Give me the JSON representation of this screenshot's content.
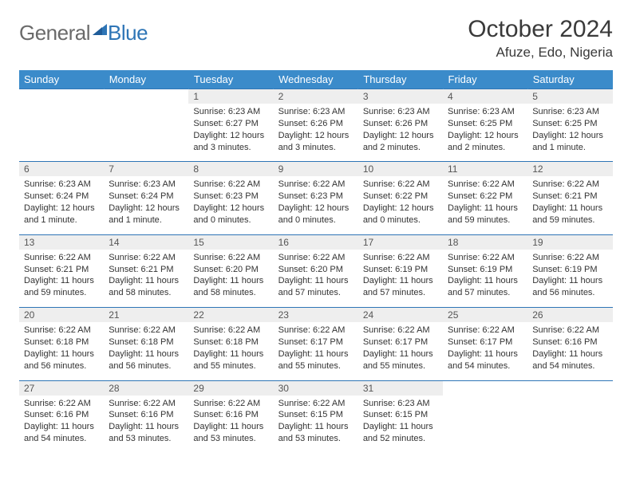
{
  "brand": {
    "part1": "General",
    "part2": "Blue"
  },
  "title": "October 2024",
  "location": "Afuze, Edo, Nigeria",
  "colors": {
    "header_bg": "#3b8bca",
    "header_text": "#ffffff",
    "rule": "#2e75b6",
    "daynum_bg": "#eeeeee",
    "text": "#333333",
    "logo_gray": "#6a6a6a",
    "logo_blue": "#2e75b6"
  },
  "weekdays": [
    "Sunday",
    "Monday",
    "Tuesday",
    "Wednesday",
    "Thursday",
    "Friday",
    "Saturday"
  ],
  "weeks": [
    [
      null,
      null,
      {
        "n": "1",
        "sr": "Sunrise: 6:23 AM",
        "ss": "Sunset: 6:27 PM",
        "dl": "Daylight: 12 hours and 3 minutes."
      },
      {
        "n": "2",
        "sr": "Sunrise: 6:23 AM",
        "ss": "Sunset: 6:26 PM",
        "dl": "Daylight: 12 hours and 3 minutes."
      },
      {
        "n": "3",
        "sr": "Sunrise: 6:23 AM",
        "ss": "Sunset: 6:26 PM",
        "dl": "Daylight: 12 hours and 2 minutes."
      },
      {
        "n": "4",
        "sr": "Sunrise: 6:23 AM",
        "ss": "Sunset: 6:25 PM",
        "dl": "Daylight: 12 hours and 2 minutes."
      },
      {
        "n": "5",
        "sr": "Sunrise: 6:23 AM",
        "ss": "Sunset: 6:25 PM",
        "dl": "Daylight: 12 hours and 1 minute."
      }
    ],
    [
      {
        "n": "6",
        "sr": "Sunrise: 6:23 AM",
        "ss": "Sunset: 6:24 PM",
        "dl": "Daylight: 12 hours and 1 minute."
      },
      {
        "n": "7",
        "sr": "Sunrise: 6:23 AM",
        "ss": "Sunset: 6:24 PM",
        "dl": "Daylight: 12 hours and 1 minute."
      },
      {
        "n": "8",
        "sr": "Sunrise: 6:22 AM",
        "ss": "Sunset: 6:23 PM",
        "dl": "Daylight: 12 hours and 0 minutes."
      },
      {
        "n": "9",
        "sr": "Sunrise: 6:22 AM",
        "ss": "Sunset: 6:23 PM",
        "dl": "Daylight: 12 hours and 0 minutes."
      },
      {
        "n": "10",
        "sr": "Sunrise: 6:22 AM",
        "ss": "Sunset: 6:22 PM",
        "dl": "Daylight: 12 hours and 0 minutes."
      },
      {
        "n": "11",
        "sr": "Sunrise: 6:22 AM",
        "ss": "Sunset: 6:22 PM",
        "dl": "Daylight: 11 hours and 59 minutes."
      },
      {
        "n": "12",
        "sr": "Sunrise: 6:22 AM",
        "ss": "Sunset: 6:21 PM",
        "dl": "Daylight: 11 hours and 59 minutes."
      }
    ],
    [
      {
        "n": "13",
        "sr": "Sunrise: 6:22 AM",
        "ss": "Sunset: 6:21 PM",
        "dl": "Daylight: 11 hours and 59 minutes."
      },
      {
        "n": "14",
        "sr": "Sunrise: 6:22 AM",
        "ss": "Sunset: 6:21 PM",
        "dl": "Daylight: 11 hours and 58 minutes."
      },
      {
        "n": "15",
        "sr": "Sunrise: 6:22 AM",
        "ss": "Sunset: 6:20 PM",
        "dl": "Daylight: 11 hours and 58 minutes."
      },
      {
        "n": "16",
        "sr": "Sunrise: 6:22 AM",
        "ss": "Sunset: 6:20 PM",
        "dl": "Daylight: 11 hours and 57 minutes."
      },
      {
        "n": "17",
        "sr": "Sunrise: 6:22 AM",
        "ss": "Sunset: 6:19 PM",
        "dl": "Daylight: 11 hours and 57 minutes."
      },
      {
        "n": "18",
        "sr": "Sunrise: 6:22 AM",
        "ss": "Sunset: 6:19 PM",
        "dl": "Daylight: 11 hours and 57 minutes."
      },
      {
        "n": "19",
        "sr": "Sunrise: 6:22 AM",
        "ss": "Sunset: 6:19 PM",
        "dl": "Daylight: 11 hours and 56 minutes."
      }
    ],
    [
      {
        "n": "20",
        "sr": "Sunrise: 6:22 AM",
        "ss": "Sunset: 6:18 PM",
        "dl": "Daylight: 11 hours and 56 minutes."
      },
      {
        "n": "21",
        "sr": "Sunrise: 6:22 AM",
        "ss": "Sunset: 6:18 PM",
        "dl": "Daylight: 11 hours and 56 minutes."
      },
      {
        "n": "22",
        "sr": "Sunrise: 6:22 AM",
        "ss": "Sunset: 6:18 PM",
        "dl": "Daylight: 11 hours and 55 minutes."
      },
      {
        "n": "23",
        "sr": "Sunrise: 6:22 AM",
        "ss": "Sunset: 6:17 PM",
        "dl": "Daylight: 11 hours and 55 minutes."
      },
      {
        "n": "24",
        "sr": "Sunrise: 6:22 AM",
        "ss": "Sunset: 6:17 PM",
        "dl": "Daylight: 11 hours and 55 minutes."
      },
      {
        "n": "25",
        "sr": "Sunrise: 6:22 AM",
        "ss": "Sunset: 6:17 PM",
        "dl": "Daylight: 11 hours and 54 minutes."
      },
      {
        "n": "26",
        "sr": "Sunrise: 6:22 AM",
        "ss": "Sunset: 6:16 PM",
        "dl": "Daylight: 11 hours and 54 minutes."
      }
    ],
    [
      {
        "n": "27",
        "sr": "Sunrise: 6:22 AM",
        "ss": "Sunset: 6:16 PM",
        "dl": "Daylight: 11 hours and 54 minutes."
      },
      {
        "n": "28",
        "sr": "Sunrise: 6:22 AM",
        "ss": "Sunset: 6:16 PM",
        "dl": "Daylight: 11 hours and 53 minutes."
      },
      {
        "n": "29",
        "sr": "Sunrise: 6:22 AM",
        "ss": "Sunset: 6:16 PM",
        "dl": "Daylight: 11 hours and 53 minutes."
      },
      {
        "n": "30",
        "sr": "Sunrise: 6:22 AM",
        "ss": "Sunset: 6:15 PM",
        "dl": "Daylight: 11 hours and 53 minutes."
      },
      {
        "n": "31",
        "sr": "Sunrise: 6:23 AM",
        "ss": "Sunset: 6:15 PM",
        "dl": "Daylight: 11 hours and 52 minutes."
      },
      null,
      null
    ]
  ]
}
